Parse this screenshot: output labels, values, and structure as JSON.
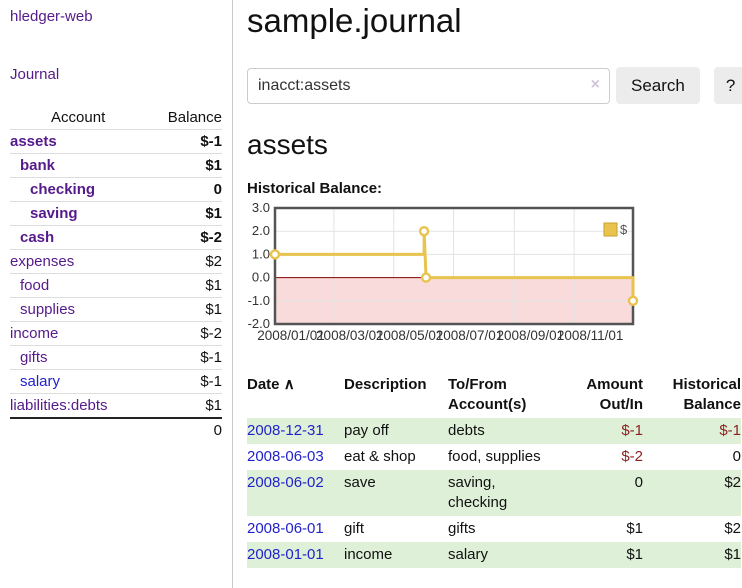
{
  "sidebar": {
    "brand": "hledger-web",
    "journal_link": "Journal",
    "accounts_table": {
      "account_header": "Account",
      "balance_header": "Balance",
      "rows": [
        {
          "name": "assets",
          "balance": "$-1",
          "depth": 0,
          "bold": true,
          "negative": true,
          "blue": false
        },
        {
          "name": "bank",
          "balance": "$1",
          "depth": 1,
          "bold": true,
          "negative": false,
          "blue": false
        },
        {
          "name": "checking",
          "balance": "0",
          "depth": 2,
          "bold": true,
          "negative": false,
          "blue": false
        },
        {
          "name": "saving",
          "balance": "$1",
          "depth": 2,
          "bold": true,
          "negative": false,
          "blue": false
        },
        {
          "name": "cash",
          "balance": "$-2",
          "depth": 1,
          "bold": true,
          "negative": true,
          "blue": false
        },
        {
          "name": "expenses",
          "balance": "$2",
          "depth": 0,
          "bold": false,
          "negative": false,
          "blue": false
        },
        {
          "name": "food",
          "balance": "$1",
          "depth": 1,
          "bold": false,
          "negative": false,
          "blue": false
        },
        {
          "name": "supplies",
          "balance": "$1",
          "depth": 1,
          "bold": false,
          "negative": false,
          "blue": false
        },
        {
          "name": "income",
          "balance": "$-2",
          "depth": 0,
          "bold": false,
          "negative": true,
          "blue": false
        },
        {
          "name": "gifts",
          "balance": "$-1",
          "depth": 1,
          "bold": false,
          "negative": true,
          "blue": false
        },
        {
          "name": "salary",
          "balance": "$-1",
          "depth": 1,
          "bold": false,
          "negative": true,
          "blue": true
        },
        {
          "name": "liabilities:debts",
          "balance": "$1",
          "depth": 0,
          "bold": false,
          "negative": false,
          "blue": false
        }
      ],
      "total": "0"
    }
  },
  "header": {
    "title": "sample.journal"
  },
  "search": {
    "value": "inacct:assets",
    "clear_icon": "×",
    "search_button": "Search",
    "help_button": "?"
  },
  "account_page": {
    "heading": "assets",
    "chart_title": "Historical Balance:"
  },
  "chart_data": {
    "type": "line",
    "title": "Historical Balance:",
    "legend": "$",
    "legend_position": "top-right",
    "grid": true,
    "xlim": [
      "2008/01/01",
      "2008/12/31"
    ],
    "ylim": [
      -2,
      3
    ],
    "y_ticks": [
      3.0,
      2.0,
      1.0,
      0.0,
      -1.0,
      -2.0
    ],
    "x_ticks": [
      "2008/01/01",
      "2008/03/01",
      "2008/05/01",
      "2008/07/01",
      "2008/09/01",
      "2008/11/01"
    ],
    "series": [
      {
        "name": "$",
        "color": "#e8c34e",
        "points": [
          [
            "2008/01/01",
            1
          ],
          [
            "2008/06/01",
            1
          ],
          [
            "2008/06/01",
            2
          ],
          [
            "2008/06/03",
            0
          ],
          [
            "2008/12/31",
            0
          ],
          [
            "2008/12/31",
            -1
          ]
        ],
        "markers": [
          [
            "2008/01/01",
            1
          ],
          [
            "2008/06/01",
            2
          ],
          [
            "2008/06/03",
            0
          ],
          [
            "2008/12/31",
            -1
          ]
        ]
      }
    ],
    "negative_region_color": "#f9dbdb",
    "zero_line_color": "#8b0000",
    "border_color": "#545454",
    "gridline_color": "#e3e3e3"
  },
  "register_table": {
    "headers": {
      "date": "Date",
      "sort_icon": "∧",
      "description": "Description",
      "accounts": "To/From Account(s)",
      "amount": "Amount Out/In",
      "balance": "Historical Balance"
    },
    "rows": [
      {
        "date": "2008-12-31",
        "description": "pay off",
        "accounts": "debts",
        "amount": "$-1",
        "amount_neg": true,
        "balance": "$-1",
        "balance_neg": true
      },
      {
        "date": "2008-06-03",
        "description": "eat & shop",
        "accounts": "food, supplies",
        "amount": "$-2",
        "amount_neg": true,
        "balance": "0",
        "balance_neg": false
      },
      {
        "date": "2008-06-02",
        "description": "save",
        "accounts": "saving, checking",
        "amount": "0",
        "amount_neg": false,
        "balance": "$2",
        "balance_neg": false
      },
      {
        "date": "2008-06-01",
        "description": "gift",
        "accounts": "gifts",
        "amount": "$1",
        "amount_neg": false,
        "balance": "$2",
        "balance_neg": false
      },
      {
        "date": "2008-01-01",
        "description": "income",
        "accounts": "salary",
        "amount": "$1",
        "amount_neg": false,
        "balance": "$1",
        "balance_neg": false
      }
    ]
  }
}
